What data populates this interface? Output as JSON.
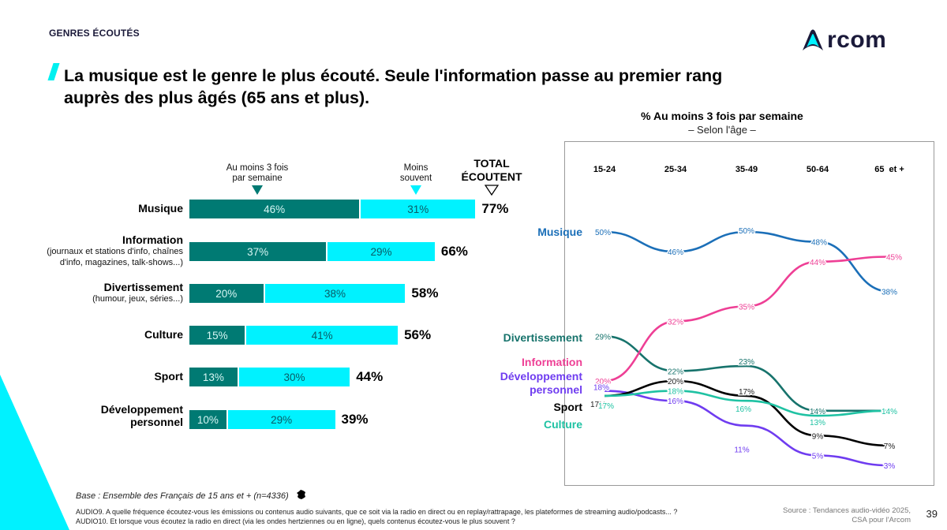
{
  "header": {
    "section_label": "GENRES ÉCOUTÉS",
    "logo_text": "rcom",
    "headline_line1": "La musique est le genre le plus écouté. Seule l'information passe au premier rang",
    "headline_line2": "auprès des plus âgés (65 ans et plus)."
  },
  "colors": {
    "dark_teal": "#007a73",
    "cyan": "#00f2ff",
    "navy": "#1b1a3a",
    "musique": "#1b6fb8",
    "information": "#ee3f95",
    "divertissement": "#17736c",
    "developpement": "#6f3cf0",
    "sport": "#000000",
    "culture": "#1fc2a3"
  },
  "chart_data": [
    {
      "type": "bar",
      "orientation": "horizontal",
      "stacked": true,
      "title": "",
      "legend": {
        "at_least_3": "Au moins 3 fois par semaine",
        "less_often": "Moins souvent",
        "total_line1": "TOTAL",
        "total_line2": "ÉCOUTENT"
      },
      "categories": [
        {
          "label": "Musique",
          "sub": ""
        },
        {
          "label": "Information",
          "sub": "(journaux et stations d'info, chaînes|d'info, magazines, talk-shows...)"
        },
        {
          "label": "Divertissement",
          "sub": "(humour, jeux, séries...)"
        },
        {
          "label": "Culture",
          "sub": ""
        },
        {
          "label": "Sport",
          "sub": ""
        },
        {
          "label": "Développement|personnel",
          "sub": ""
        }
      ],
      "series": [
        {
          "name": "Au moins 3 fois par semaine",
          "values": [
            46,
            37,
            20,
            15,
            13,
            10
          ]
        },
        {
          "name": "Moins souvent",
          "values": [
            31,
            29,
            38,
            41,
            30,
            29
          ]
        }
      ],
      "totals": [
        77,
        66,
        58,
        56,
        44,
        39
      ],
      "unit": "%"
    },
    {
      "type": "line",
      "title": "% Au moins 3 fois par semaine",
      "subtitle": "– Selon l'âge –",
      "x": [
        "15-24",
        "25-34",
        "35-49",
        "50-64",
        "65  et +"
      ],
      "ylim": [
        0,
        55
      ],
      "grid": false,
      "unit": "%",
      "series": [
        {
          "name": "Musique",
          "key": "musique",
          "values": [
            50,
            46,
            50,
            48,
            38
          ]
        },
        {
          "name": "Divertissement",
          "key": "divertissement",
          "values": [
            29,
            22,
            23,
            14,
            14
          ]
        },
        {
          "name": "Information",
          "key": "information",
          "values": [
            20,
            32,
            35,
            44,
            45
          ]
        },
        {
          "name": "Développement|personnel",
          "key": "developpement",
          "values": [
            18,
            16,
            11,
            5,
            3
          ]
        },
        {
          "name": "Sport",
          "key": "sport",
          "values": [
            17,
            20,
            17,
            9,
            7
          ]
        },
        {
          "name": "Culture",
          "key": "culture",
          "values": [
            17,
            18,
            16,
            13,
            14
          ]
        }
      ]
    }
  ],
  "footer": {
    "base": "Base : Ensemble des Français de 15 ans et + (n=4336)",
    "question1": "AUDIO9. A quelle fréquence écoutez-vous les émissions ou contenus audio suivants, que ce soit via la radio en direct ou en replay/rattrapage, les plateformes de streaming audio/podcasts... ?",
    "question2": "AUDIO10. Et lorsque vous écoutez la radio en direct (via les ondes hertziennes ou en ligne), quels contenus écoutez-vous le plus souvent ?",
    "source_line1": "Source : Tendances audio-vidéo 2025,",
    "source_line2": "CSA pour l'Arcom",
    "page_number": "39"
  }
}
